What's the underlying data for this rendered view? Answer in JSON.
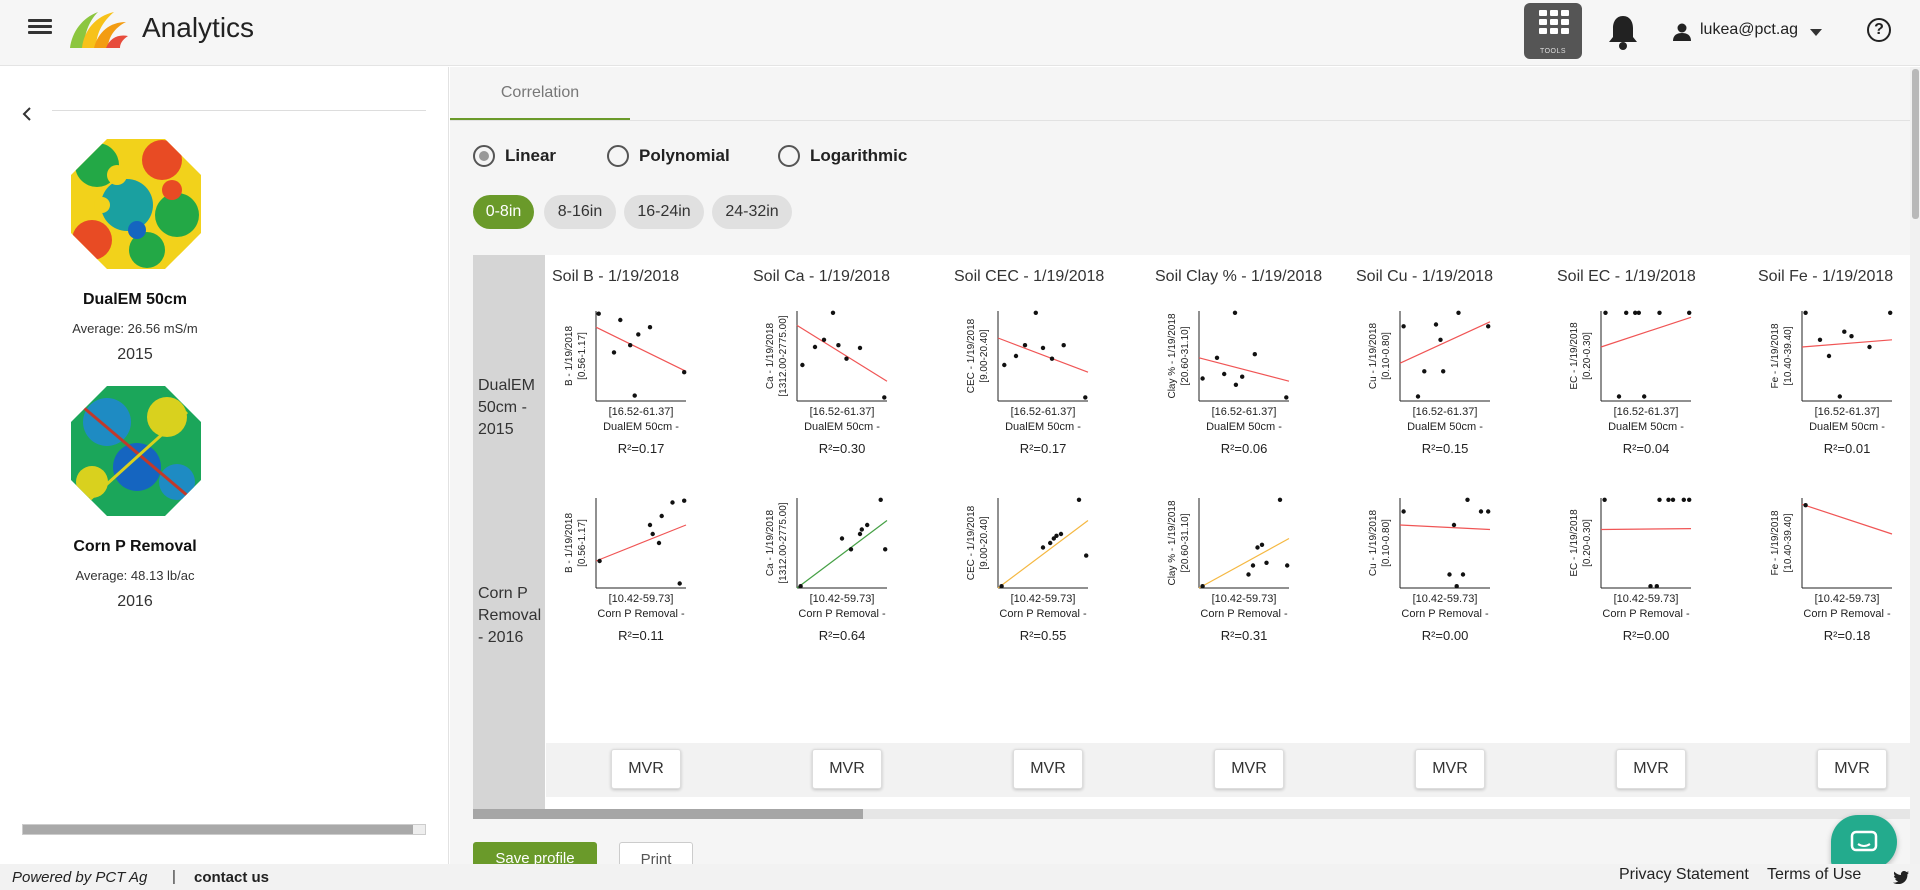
{
  "header": {
    "app_title": "Analytics",
    "tools_label": "TOOLS",
    "user_email": "lukea@pct.ag"
  },
  "sidebar": {
    "layers": [
      {
        "name": "DualEM 50cm",
        "average": "Average: 26.56 mS/m",
        "year": "2015"
      },
      {
        "name": "Corn P Removal",
        "average": "Average: 48.13 lb/ac",
        "year": "2016"
      }
    ]
  },
  "tabs": [
    {
      "label": "Correlation"
    }
  ],
  "regression": {
    "options": [
      {
        "label": "Linear",
        "selected": true
      },
      {
        "label": "Polynomial",
        "selected": false
      },
      {
        "label": "Logarithmic",
        "selected": false
      }
    ]
  },
  "depths": [
    {
      "label": "0-8in",
      "active": true
    },
    {
      "label": "8-16in",
      "active": false
    },
    {
      "label": "16-24in",
      "active": false
    },
    {
      "label": "24-32in",
      "active": false
    }
  ],
  "correlation": {
    "rows": [
      {
        "label_lines": [
          "DualEM",
          "50cm -",
          "2015"
        ],
        "x_range": "[16.52-61.37]",
        "x_label": "DualEM 50cm -"
      },
      {
        "label_lines": [
          "Corn P",
          "Removal",
          "- 2016"
        ],
        "x_range": "[10.42-59.73]",
        "x_label": "Corn P Removal -"
      }
    ],
    "columns": [
      {
        "title": "Soil B - 1/19/2018",
        "y_label": "B - 1/19/2018",
        "y_range": "[0.56-1.17]",
        "mvr_label": "MVR"
      },
      {
        "title": "Soil Ca - 1/19/2018",
        "y_label": "Ca - 1/19/2018",
        "y_range": "[1312.00-2775.00]",
        "mvr_label": "MVR"
      },
      {
        "title": "Soil CEC - 1/19/2018",
        "y_label": "CEC - 1/19/2018",
        "y_range": "[9.00-20.40]",
        "mvr_label": "MVR"
      },
      {
        "title": "Soil Clay % - 1/19/2018",
        "y_label": "Clay % - 1/19/2018",
        "y_range": "[20.60-31.10]",
        "mvr_label": "MVR"
      },
      {
        "title": "Soil Cu - 1/19/2018",
        "y_label": "Cu - 1/19/2018",
        "y_range": "[0.10-0.80]",
        "mvr_label": "MVR"
      },
      {
        "title": "Soil EC - 1/19/2018",
        "y_label": "EC - 1/19/2018",
        "y_range": "[0.20-0.30]",
        "mvr_label": "MVR"
      },
      {
        "title": "Soil Fe - 1/19/2018",
        "y_label": "Fe - 1/19/2018",
        "y_range": "[10.40-39.40]",
        "mvr_label": "MVR"
      }
    ],
    "cells": [
      [
        {
          "r2": "R²=0.17",
          "color": "#f05555",
          "line": [
            0.82,
            0.33
          ],
          "points": [
            [
              0.03,
              0.97
            ],
            [
              0.2,
              0.54
            ],
            [
              0.27,
              0.9
            ],
            [
              0.38,
              0.62
            ],
            [
              0.43,
              0.06
            ],
            [
              0.47,
              0.74
            ],
            [
              0.6,
              0.82
            ],
            [
              0.98,
              0.32
            ]
          ]
        },
        {
          "r2": "R²=0.30",
          "color": "#f05555",
          "line": [
            0.84,
            0.22
          ],
          "points": [
            [
              0.06,
              0.4
            ],
            [
              0.2,
              0.6
            ],
            [
              0.3,
              0.68
            ],
            [
              0.4,
              0.98
            ],
            [
              0.46,
              0.62
            ],
            [
              0.55,
              0.47
            ],
            [
              0.7,
              0.59
            ],
            [
              0.97,
              0.04
            ]
          ]
        },
        {
          "r2": "R²=0.17",
          "color": "#f05555",
          "line": [
            0.7,
            0.32
          ],
          "points": [
            [
              0.07,
              0.4
            ],
            [
              0.2,
              0.5
            ],
            [
              0.3,
              0.62
            ],
            [
              0.42,
              0.98
            ],
            [
              0.5,
              0.59
            ],
            [
              0.6,
              0.47
            ],
            [
              0.73,
              0.62
            ],
            [
              0.97,
              0.04
            ]
          ]
        },
        {
          "r2": "R²=0.06",
          "color": "#f05555",
          "line": [
            0.48,
            0.22
          ],
          "points": [
            [
              0.04,
              0.25
            ],
            [
              0.2,
              0.48
            ],
            [
              0.28,
              0.3
            ],
            [
              0.4,
              0.98
            ],
            [
              0.41,
              0.18
            ],
            [
              0.48,
              0.27
            ],
            [
              0.62,
              0.52
            ],
            [
              0.97,
              0.04
            ]
          ]
        },
        {
          "r2": "R²=0.15",
          "color": "#f05555",
          "line": [
            0.42,
            0.88
          ],
          "points": [
            [
              0.04,
              0.83
            ],
            [
              0.2,
              0.05
            ],
            [
              0.27,
              0.33
            ],
            [
              0.4,
              0.85
            ],
            [
              0.45,
              0.68
            ],
            [
              0.48,
              0.33
            ],
            [
              0.65,
              0.98
            ],
            [
              0.98,
              0.83
            ]
          ]
        },
        {
          "r2": "R²=0.04",
          "color": "#f05555",
          "line": [
            0.6,
            0.93
          ],
          "points": [
            [
              0.05,
              0.98
            ],
            [
              0.2,
              0.05
            ],
            [
              0.28,
              0.98
            ],
            [
              0.38,
              0.98
            ],
            [
              0.42,
              0.98
            ],
            [
              0.48,
              0.05
            ],
            [
              0.65,
              0.98
            ],
            [
              0.98,
              0.98
            ]
          ]
        },
        {
          "r2": "R²=0.01",
          "color": "#f05555",
          "line": [
            0.6,
            0.68
          ],
          "points": [
            [
              0.04,
              0.98
            ],
            [
              0.2,
              0.68
            ],
            [
              0.3,
              0.5
            ],
            [
              0.42,
              0.05
            ],
            [
              0.47,
              0.77
            ],
            [
              0.55,
              0.72
            ],
            [
              0.75,
              0.6
            ],
            [
              0.98,
              0.98
            ]
          ]
        }
      ],
      [
        {
          "r2": "R²=0.11",
          "color": "#f05555",
          "line": [
            0.3,
            0.7
          ],
          "points": [
            [
              0.04,
              0.3
            ],
            [
              0.6,
              0.7
            ],
            [
              0.63,
              0.6
            ],
            [
              0.7,
              0.5
            ],
            [
              0.73,
              0.8
            ],
            [
              0.85,
              0.95
            ],
            [
              0.93,
              0.05
            ],
            [
              0.98,
              0.97
            ]
          ]
        },
        {
          "r2": "R²=0.64",
          "color": "#45a045",
          "line": [
            0.0,
            0.75
          ],
          "points": [
            [
              0.04,
              0.02
            ],
            [
              0.5,
              0.55
            ],
            [
              0.6,
              0.43
            ],
            [
              0.7,
              0.6
            ],
            [
              0.72,
              0.65
            ],
            [
              0.78,
              0.7
            ],
            [
              0.93,
              0.98
            ],
            [
              0.98,
              0.43
            ]
          ]
        },
        {
          "r2": "R²=0.55",
          "color": "#f5b842",
          "line": [
            0.0,
            0.75
          ],
          "points": [
            [
              0.04,
              0.02
            ],
            [
              0.5,
              0.45
            ],
            [
              0.58,
              0.5
            ],
            [
              0.62,
              0.55
            ],
            [
              0.65,
              0.58
            ],
            [
              0.7,
              0.6
            ],
            [
              0.9,
              0.98
            ],
            [
              0.98,
              0.36
            ]
          ]
        },
        {
          "r2": "R²=0.31",
          "color": "#f5b842",
          "line": [
            0.0,
            0.55
          ],
          "points": [
            [
              0.04,
              0.02
            ],
            [
              0.55,
              0.15
            ],
            [
              0.6,
              0.25
            ],
            [
              0.65,
              0.45
            ],
            [
              0.7,
              0.48
            ],
            [
              0.75,
              0.28
            ],
            [
              0.9,
              0.98
            ],
            [
              0.98,
              0.25
            ]
          ]
        },
        {
          "r2": "R²=0.00",
          "color": "#f05555",
          "line": [
            0.7,
            0.65
          ],
          "points": [
            [
              0.04,
              0.85
            ],
            [
              0.55,
              0.15
            ],
            [
              0.6,
              0.7
            ],
            [
              0.63,
              0.02
            ],
            [
              0.7,
              0.15
            ],
            [
              0.75,
              0.98
            ],
            [
              0.9,
              0.85
            ],
            [
              0.98,
              0.85
            ]
          ]
        },
        {
          "r2": "R²=0.00",
          "color": "#f05555",
          "line": [
            0.65,
            0.66
          ],
          "points": [
            [
              0.04,
              0.98
            ],
            [
              0.55,
              0.02
            ],
            [
              0.62,
              0.02
            ],
            [
              0.65,
              0.98
            ],
            [
              0.75,
              0.98
            ],
            [
              0.8,
              0.98
            ],
            [
              0.92,
              0.98
            ],
            [
              0.98,
              0.98
            ]
          ]
        },
        {
          "r2": "R²=0.18",
          "color": "#f05555",
          "line": [
            0.93,
            0.6
          ],
          "points": [
            [
              0.04,
              0.92
            ]
          ]
        }
      ]
    ]
  },
  "actions": {
    "save_label": "Save profile",
    "print_label": "Print"
  },
  "footer": {
    "powered_by": "Powered by PCT Ag",
    "separator": "|",
    "contact_label": "contact us",
    "privacy_label": "Privacy Statement",
    "terms_label": "Terms of Use"
  }
}
